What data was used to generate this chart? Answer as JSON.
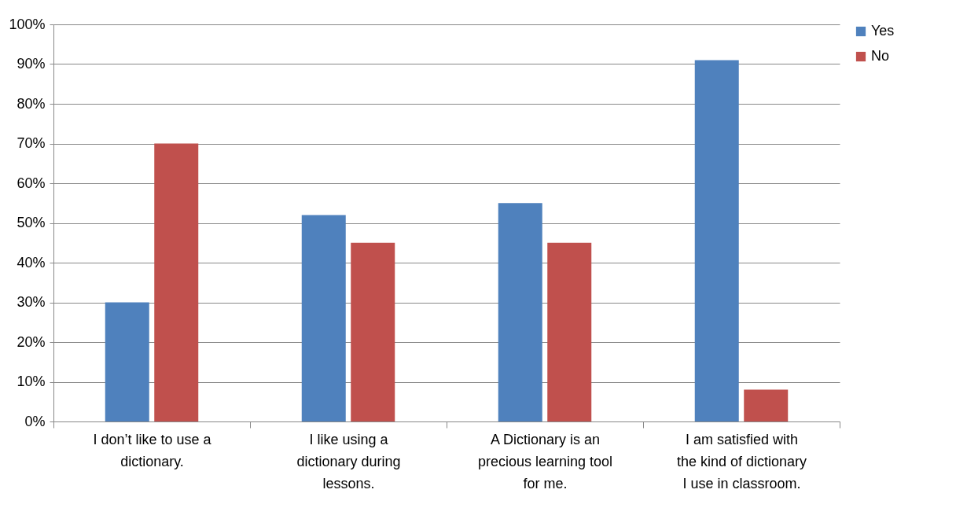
{
  "chart_data": {
    "type": "bar",
    "categories": [
      "I don’t like to use a dictionary.",
      "I like using a dictionary during lessons.",
      "A Dictionary is an precious learning tool for me.",
      "I am satisfied with the kind of dictionary I use in classroom."
    ],
    "series": [
      {
        "name": "Yes",
        "color": "#4f81bd",
        "values": [
          30,
          52,
          55,
          91
        ]
      },
      {
        "name": "No",
        "color": "#c0504d",
        "values": [
          70,
          45,
          45,
          8
        ]
      }
    ],
    "ylim": [
      0,
      100
    ],
    "yticks": [
      {
        "value": 0,
        "label": "0%"
      },
      {
        "value": 10,
        "label": "10%"
      },
      {
        "value": 20,
        "label": "20%"
      },
      {
        "value": 30,
        "label": "30%"
      },
      {
        "value": 40,
        "label": "40%"
      },
      {
        "value": 50,
        "label": "50%"
      },
      {
        "value": 60,
        "label": "60%"
      },
      {
        "value": 70,
        "label": "70%"
      },
      {
        "value": 80,
        "label": "80%"
      },
      {
        "value": 90,
        "label": "90%"
      },
      {
        "value": 100,
        "label": "100%"
      }
    ],
    "grid": "y",
    "legend": "right"
  }
}
